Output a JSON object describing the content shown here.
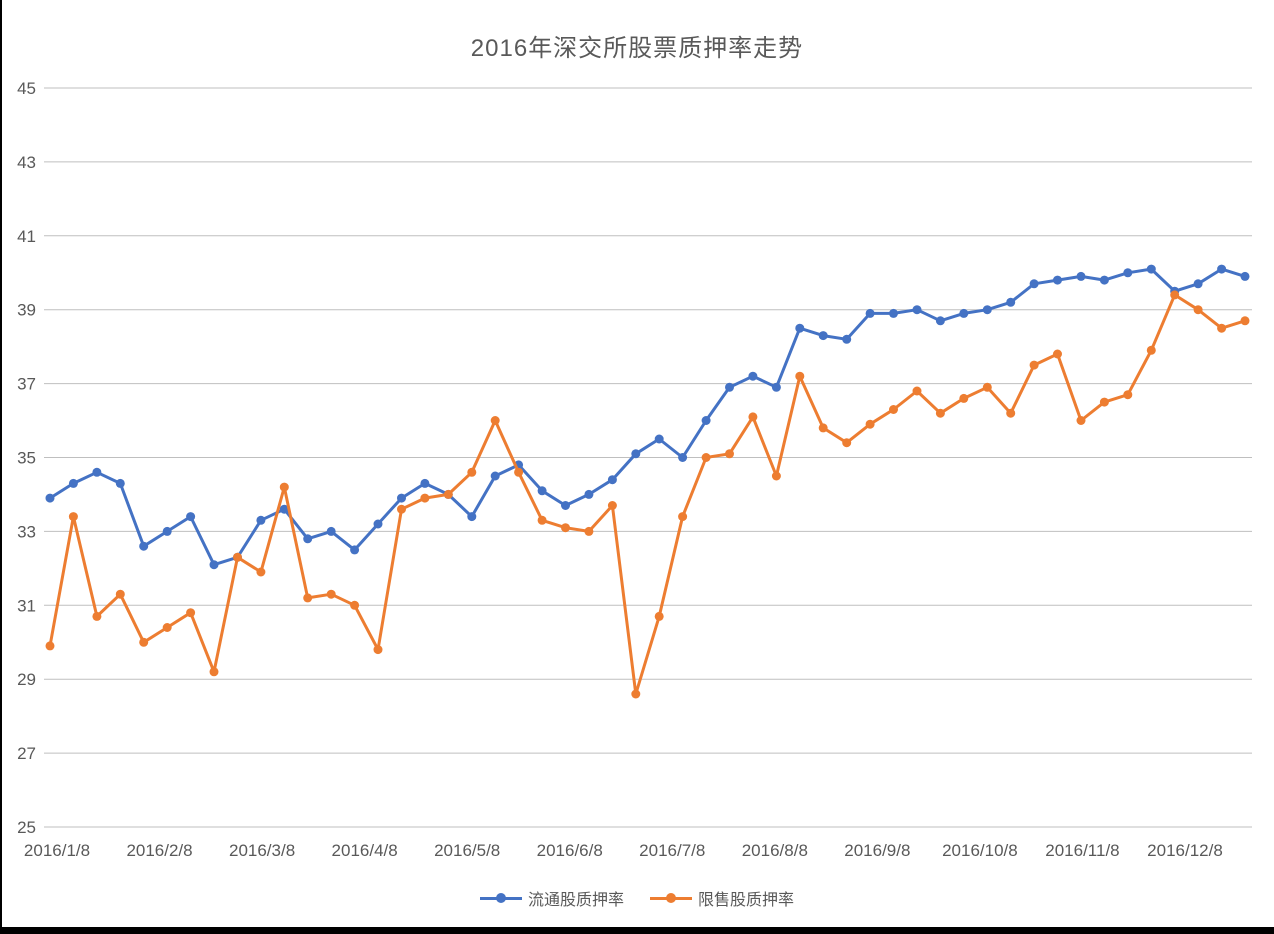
{
  "chart_data": {
    "type": "line",
    "title": "2016年深交所股票质押率走势",
    "xlabel": "",
    "ylabel": "",
    "ylim": [
      25,
      45
    ],
    "ytick_step": 2,
    "grid": "horizontal",
    "legend_position": "bottom",
    "text_color": "#595959",
    "grid_color": "#BFBFBF",
    "frame_color": "#000000",
    "x_tick_labels": [
      "2016/1/8",
      "2016/2/8",
      "2016/3/8",
      "2016/4/8",
      "2016/5/8",
      "2016/6/8",
      "2016/7/8",
      "2016/8/8",
      "2016/9/8",
      "2016/10/8",
      "2016/11/8",
      "2016/12/8"
    ],
    "series": [
      {
        "name": "流通股质押率",
        "color": "#4472C4",
        "values": [
          33.9,
          34.3,
          34.6,
          34.3,
          32.6,
          33.0,
          33.4,
          32.1,
          32.3,
          33.3,
          33.6,
          32.8,
          33.0,
          32.5,
          33.2,
          33.9,
          34.3,
          34.0,
          33.4,
          34.5,
          34.8,
          34.1,
          33.7,
          34.0,
          34.4,
          35.1,
          35.5,
          35.0,
          36.0,
          36.9,
          37.2,
          36.9,
          38.5,
          38.3,
          38.2,
          38.9,
          38.9,
          39.0,
          38.7,
          38.9,
          39.0,
          39.2,
          39.7,
          39.8,
          39.9,
          39.8,
          40.0,
          40.1,
          39.5,
          39.7,
          40.1,
          39.9
        ]
      },
      {
        "name": "限售股质押率",
        "color": "#ED7D31",
        "values": [
          29.9,
          33.4,
          30.7,
          31.3,
          30.0,
          30.4,
          30.8,
          29.2,
          32.3,
          31.9,
          34.2,
          31.2,
          31.3,
          31.0,
          29.8,
          33.6,
          33.9,
          34.0,
          34.6,
          36.0,
          34.6,
          33.3,
          33.1,
          33.0,
          33.7,
          28.6,
          30.7,
          33.4,
          35.0,
          35.1,
          36.1,
          34.5,
          37.2,
          35.8,
          35.4,
          35.9,
          36.3,
          36.8,
          36.2,
          36.6,
          36.9,
          36.2,
          37.5,
          37.8,
          36.0,
          36.5,
          36.7,
          37.9,
          39.4,
          39.0,
          38.5,
          38.7
        ]
      }
    ]
  }
}
